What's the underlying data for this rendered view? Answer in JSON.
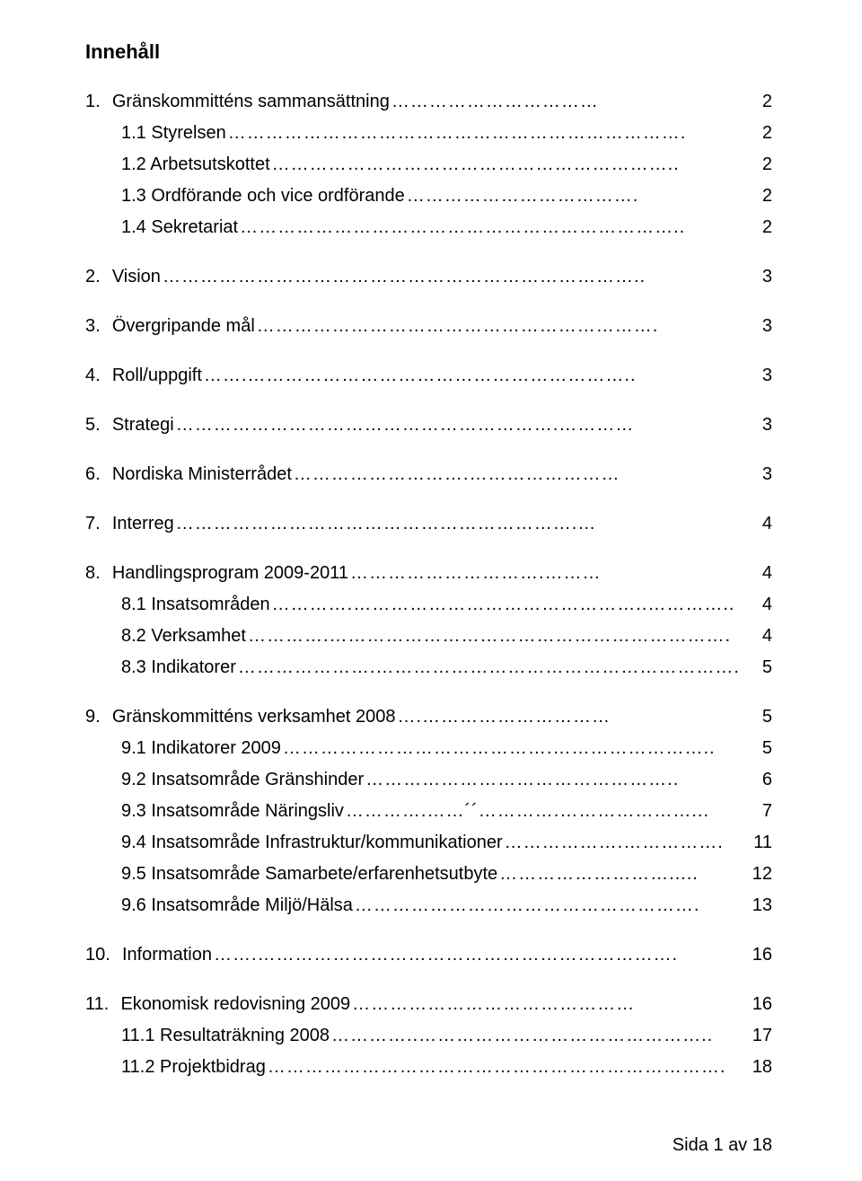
{
  "title": "Innehåll",
  "footer": "Sida 1 av 18",
  "colors": {
    "background": "#ffffff",
    "text": "#000000"
  },
  "typography": {
    "title_fontsize": 22,
    "body_fontsize": 20,
    "font_family": "Arial"
  },
  "entries": [
    {
      "num": "1.",
      "label": "Gränskommitténs sammansättning",
      "page": "2",
      "indent": 0,
      "dots": "……………………………"
    },
    {
      "num": "",
      "label": "1.1 Styrelsen",
      "page": "2",
      "indent": 1,
      "dots": "………………………………………………………………."
    },
    {
      "num": "",
      "label": "1.2 Arbetsutskottet",
      "page": "2",
      "indent": 1,
      "dots": "……………………………………………………….."
    },
    {
      "num": "",
      "label": "1.3 Ordförande och vice ordförande",
      "page": "2",
      "indent": 1,
      "dots": "………………………………."
    },
    {
      "num": "",
      "label": "1.4 Sekretariat",
      "page": "2",
      "indent": 1,
      "dots": "…………………………………………………………….."
    },
    {
      "spacer": true
    },
    {
      "num": "2.",
      "label": "Vision",
      "page": "3",
      "indent": 0,
      "dots": "………………………………………………………………….."
    },
    {
      "spacer": true
    },
    {
      "num": "3.",
      "label": "Övergripande mål",
      "page": "3",
      "indent": 0,
      "dots": "………………………………………………………."
    },
    {
      "spacer": true
    },
    {
      "num": "4.",
      "label": "Roll/uppgift",
      "page": "3",
      "indent": 0,
      "dots": "…….…………………………………………………….."
    },
    {
      "spacer": true
    },
    {
      "num": "5.",
      "label": "Strategi",
      "page": "3",
      "indent": 0,
      "dots": "…………………………………………………….…………"
    },
    {
      "spacer": true
    },
    {
      "num": "6.",
      "label": "Nordiska Ministerrådet",
      "page": "3",
      "indent": 0,
      "dots": "……………………….……………………"
    },
    {
      "spacer": true
    },
    {
      "num": "7.",
      "label": "Interreg",
      "page": "4",
      "indent": 0,
      "dots": "……………………………………………………….…"
    },
    {
      "spacer": true
    },
    {
      "num": "8.",
      "label": "Handlingsprogram 2009-2011",
      "page": "4",
      "indent": 0,
      "dots": "………………………….………"
    },
    {
      "num": "",
      "label": "8.1 Insatsområden",
      "page": "4",
      "indent": 1,
      "dots": "………….………………………………………..………….."
    },
    {
      "num": "",
      "label": "8.2 Verksamhet",
      "page": "4",
      "indent": 1,
      "dots": "………….………………………………………………………."
    },
    {
      "num": "",
      "label": "8.3 Indikatorer",
      "page": "5",
      "indent": 1,
      "dots": "………………….…………………………………………………."
    },
    {
      "spacer": true
    },
    {
      "num": "9.",
      "label": "Gränskommitténs verksamhet 2008",
      "page": "5",
      "indent": 0,
      "dots": "….…………………………"
    },
    {
      "num": "",
      "label": "9.1 Indikatorer 2009",
      "page": "5",
      "indent": 1,
      "dots": "…………………………………….…………………….."
    },
    {
      "num": "",
      "label": "9.2 Insatsområde Gränshinder",
      "page": "6",
      "indent": 1,
      "dots": "………………………………………….."
    },
    {
      "num": "",
      "label": "9.3 Insatsområde Näringsliv",
      "page": "7",
      "indent": 1,
      "dots": "………….……´´………….…………………..."
    },
    {
      "num": "",
      "label": "9.4 Insatsområde Infrastruktur/kommunikationer",
      "page": "11",
      "indent": 1,
      "dots": "……………….……………."
    },
    {
      "num": "",
      "label": "9.5 Insatsområde Samarbete/erfarenhetsutbyte",
      "page": "12",
      "indent": 1,
      "dots": "………………………....."
    },
    {
      "num": "",
      "label": "9.6 Insatsområde Miljö/Hälsa",
      "page": "13",
      "indent": 1,
      "dots": "………………………………………………."
    },
    {
      "spacer": true
    },
    {
      "num": "10.",
      "label": " Information",
      "page": "16",
      "indent": 0,
      "dots": "…….…………………………………………………………."
    },
    {
      "spacer": true
    },
    {
      "num": "11.",
      "label": " Ekonomisk redovisning 2009",
      "page": "16",
      "indent": 0,
      "dots": "………………………………………"
    },
    {
      "num": "",
      "label": "11.1 Resultaträkning 2008",
      "page": "17",
      "indent": 1,
      "dots": "…………..……………………………………….."
    },
    {
      "num": "",
      "label": "11.2 Projektbidrag",
      "page": "18",
      "indent": 1,
      "dots": "………………………………………………………………."
    }
  ]
}
